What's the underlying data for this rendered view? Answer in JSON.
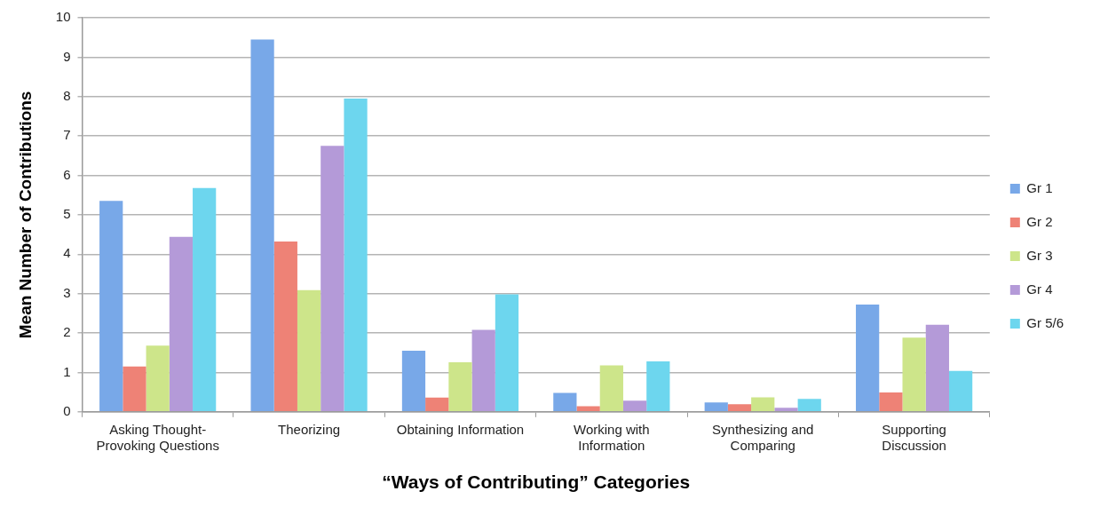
{
  "chart_data": {
    "type": "bar",
    "xlabel": "“Ways of Contributing” Categories",
    "ylabel": "Mean Number of Contributions",
    "categories": [
      "Asking Thought-Provoking Questions",
      "Theorizing",
      "Obtaining Information",
      "Working with Information",
      "Synthesizing and Comparing",
      "Supporting Discussion"
    ],
    "series": [
      {
        "name": "Gr 1",
        "color": "#78a8e8",
        "values": [
          5.35,
          9.45,
          1.55,
          0.48,
          0.24,
          2.72
        ]
      },
      {
        "name": "Gr 2",
        "color": "#ee8276",
        "values": [
          1.15,
          4.32,
          0.36,
          0.14,
          0.19,
          0.49
        ]
      },
      {
        "name": "Gr 3",
        "color": "#cde58a",
        "values": [
          1.68,
          3.09,
          1.26,
          1.18,
          0.37,
          1.88
        ]
      },
      {
        "name": "Gr 4",
        "color": "#b49ad8",
        "values": [
          4.44,
          6.75,
          2.08,
          0.28,
          0.1,
          2.21
        ]
      },
      {
        "name": "Gr 5/6",
        "color": "#6dd6ee",
        "values": [
          5.68,
          7.95,
          2.98,
          1.28,
          0.33,
          1.04
        ]
      }
    ],
    "ylim": [
      0,
      10
    ],
    "yticks": [
      0,
      1,
      2,
      3,
      4,
      5,
      6,
      7,
      8,
      9,
      10
    ],
    "grid": "y",
    "legend": "right"
  }
}
